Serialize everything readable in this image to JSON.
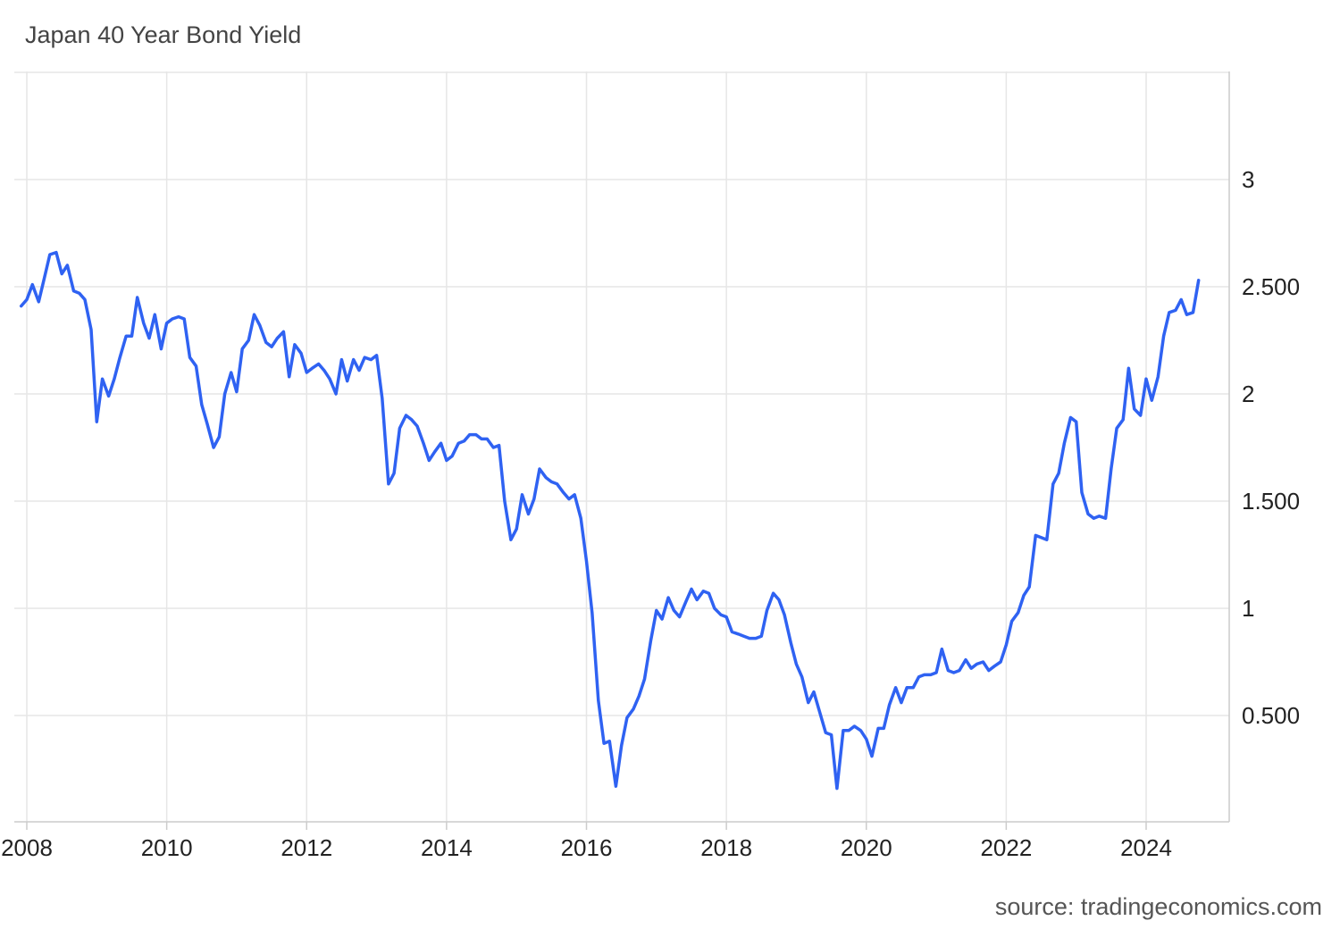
{
  "title": "Japan 40 Year Bond Yield",
  "source": "source: tradingeconomics.com",
  "colors": {
    "line": "#2f62f2",
    "grid": "#e6e6e6",
    "axis": "#cccccc"
  },
  "chart_data": {
    "type": "line",
    "title": "Japan 40 Year Bond Yield",
    "xlabel": "",
    "ylabel": "",
    "grid": true,
    "xlim": [
      2007.92,
      2025.6
    ],
    "ylim": [
      0,
      3.5
    ],
    "y_ticks": [
      0.5,
      1,
      1.5,
      2,
      2.5,
      3
    ],
    "y_tick_labels": [
      "0.500",
      "1",
      "1.500",
      "2",
      "2.500",
      "3"
    ],
    "x_ticks": [
      2008,
      2010,
      2012,
      2014,
      2016,
      2018,
      2020,
      2022,
      2024
    ],
    "x_tick_labels": [
      "2008",
      "2010",
      "2012",
      "2014",
      "2016",
      "2018",
      "2020",
      "2022",
      "2024"
    ],
    "series": [
      {
        "x": [
          2007.92,
          2008.0,
          2008.08,
          2008.17,
          2008.25,
          2008.33,
          2008.42,
          2008.5,
          2008.58,
          2008.67,
          2008.75,
          2008.83,
          2008.92,
          2009.0,
          2009.08,
          2009.17,
          2009.25,
          2009.33,
          2009.42,
          2009.5,
          2009.58,
          2009.67,
          2009.75,
          2009.83,
          2009.92,
          2010.0,
          2010.08,
          2010.17,
          2010.25,
          2010.33,
          2010.42,
          2010.5,
          2010.58,
          2010.67,
          2010.75,
          2010.83,
          2010.92,
          2011.0,
          2011.08,
          2011.17,
          2011.25,
          2011.33,
          2011.42,
          2011.5,
          2011.58,
          2011.67,
          2011.75,
          2011.83,
          2011.92,
          2012.0,
          2012.08,
          2012.17,
          2012.25,
          2012.33,
          2012.42,
          2012.5,
          2012.58,
          2012.67,
          2012.75,
          2012.83,
          2012.92,
          2013.0,
          2013.08,
          2013.17,
          2013.25,
          2013.33,
          2013.42,
          2013.5,
          2013.58,
          2013.67,
          2013.75,
          2013.83,
          2013.92,
          2014.0,
          2014.08,
          2014.17,
          2014.25,
          2014.33,
          2014.42,
          2014.5,
          2014.58,
          2014.67,
          2014.75,
          2014.83,
          2014.92,
          2015.0,
          2015.08,
          2015.17,
          2015.25,
          2015.33,
          2015.42,
          2015.5,
          2015.58,
          2015.67,
          2015.75,
          2015.83,
          2015.92,
          2016.0,
          2016.08,
          2016.17,
          2016.25,
          2016.33,
          2016.42,
          2016.5,
          2016.58,
          2016.67,
          2016.75,
          2016.83,
          2016.92,
          2017.0,
          2017.08,
          2017.17,
          2017.25,
          2017.33,
          2017.42,
          2017.5,
          2017.58,
          2017.67,
          2017.75,
          2017.83,
          2017.92,
          2018.0,
          2018.08,
          2018.17,
          2018.25,
          2018.33,
          2018.42,
          2018.5,
          2018.58,
          2018.67,
          2018.75,
          2018.83,
          2018.92,
          2019.0,
          2019.08,
          2019.17,
          2019.25,
          2019.33,
          2019.42,
          2019.5,
          2019.58,
          2019.67,
          2019.75,
          2019.83,
          2019.92,
          2020.0,
          2020.08,
          2020.17,
          2020.25,
          2020.33,
          2020.42,
          2020.5,
          2020.58,
          2020.67,
          2020.75,
          2020.83,
          2020.92,
          2021.0,
          2021.08,
          2021.17,
          2021.25,
          2021.33,
          2021.42,
          2021.5,
          2021.58,
          2021.67,
          2021.75,
          2021.83,
          2021.92,
          2022.0,
          2022.08,
          2022.17,
          2022.25,
          2022.33,
          2022.42,
          2022.5,
          2022.58,
          2022.67,
          2022.75,
          2022.83,
          2022.92,
          2023.0,
          2023.08,
          2023.17,
          2023.25,
          2023.33,
          2023.42,
          2023.5,
          2023.58,
          2023.67,
          2023.75,
          2023.83,
          2023.92,
          2024.0,
          2024.08,
          2024.17,
          2024.25,
          2024.33,
          2024.42,
          2024.5,
          2024.58,
          2024.67,
          2024.75
        ],
        "y": [
          2.41,
          2.44,
          2.51,
          2.43,
          2.54,
          2.65,
          2.66,
          2.56,
          2.6,
          2.48,
          2.47,
          2.44,
          2.3,
          1.87,
          2.07,
          1.99,
          2.07,
          2.17,
          2.27,
          2.27,
          2.45,
          2.33,
          2.26,
          2.37,
          2.21,
          2.33,
          2.35,
          2.36,
          2.35,
          2.17,
          2.13,
          1.95,
          1.86,
          1.75,
          1.8,
          2.0,
          2.1,
          2.01,
          2.21,
          2.25,
          2.37,
          2.32,
          2.24,
          2.22,
          2.26,
          2.29,
          2.08,
          2.23,
          2.19,
          2.1,
          2.12,
          2.14,
          2.11,
          2.07,
          2.0,
          2.16,
          2.06,
          2.16,
          2.11,
          2.17,
          2.16,
          2.18,
          1.98,
          1.58,
          1.63,
          1.84,
          1.9,
          1.88,
          1.85,
          1.77,
          1.69,
          1.73,
          1.77,
          1.69,
          1.71,
          1.77,
          1.78,
          1.81,
          1.81,
          1.79,
          1.79,
          1.75,
          1.76,
          1.5,
          1.32,
          1.37,
          1.53,
          1.44,
          1.51,
          1.65,
          1.61,
          1.59,
          1.58,
          1.54,
          1.51,
          1.53,
          1.42,
          1.22,
          0.98,
          0.57,
          0.37,
          0.38,
          0.17,
          0.36,
          0.49,
          0.53,
          0.59,
          0.67,
          0.85,
          0.99,
          0.95,
          1.05,
          0.99,
          0.96,
          1.03,
          1.09,
          1.04,
          1.08,
          1.07,
          1.0,
          0.97,
          0.96,
          0.89,
          0.88,
          0.87,
          0.86,
          0.86,
          0.87,
          0.99,
          1.07,
          1.04,
          0.97,
          0.84,
          0.74,
          0.68,
          0.56,
          0.61,
          0.52,
          0.42,
          0.41,
          0.16,
          0.43,
          0.43,
          0.45,
          0.43,
          0.39,
          0.31,
          0.44,
          0.44,
          0.55,
          0.63,
          0.56,
          0.63,
          0.63,
          0.68,
          0.69,
          0.69,
          0.7,
          0.81,
          0.71,
          0.7,
          0.71,
          0.76,
          0.72,
          0.74,
          0.75,
          0.71,
          0.73,
          0.75,
          0.83,
          0.94,
          0.98,
          1.06,
          1.1,
          1.34,
          1.33,
          1.32,
          1.58,
          1.63,
          1.77,
          1.89,
          1.87,
          1.54,
          1.44,
          1.42,
          1.43,
          1.42,
          1.65,
          1.84,
          1.88,
          2.12,
          1.93,
          1.9,
          2.07,
          1.97,
          2.08,
          2.27,
          2.38,
          2.39,
          2.44,
          2.37,
          2.38,
          2.53
        ]
      }
    ]
  }
}
